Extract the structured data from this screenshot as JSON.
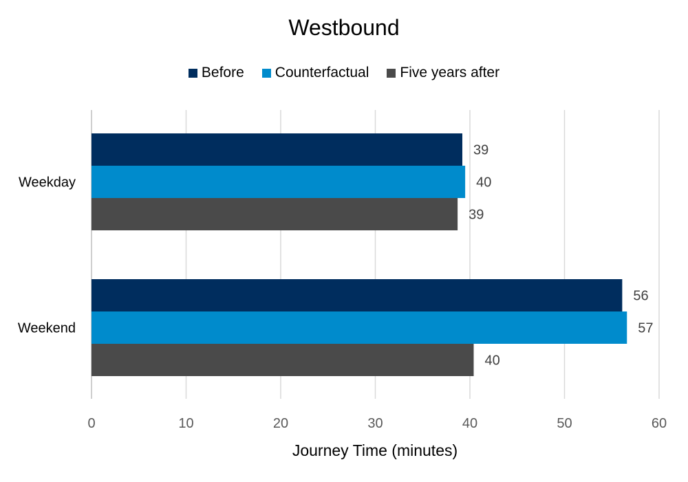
{
  "chart_data": {
    "type": "bar",
    "orientation": "horizontal",
    "title": "Westbound",
    "categories": [
      "Weekday",
      "Weekend"
    ],
    "series": [
      {
        "name": "Before",
        "color": "#002D5E",
        "values": [
          39.2,
          56.1
        ],
        "labels": [
          "39",
          "56"
        ]
      },
      {
        "name": "Counterfactual",
        "color": "#008BCC",
        "values": [
          39.5,
          56.6
        ],
        "labels": [
          "40",
          "57"
        ]
      },
      {
        "name": "Five years after",
        "color": "#4A4A4A",
        "values": [
          38.7,
          40.4
        ],
        "labels": [
          "39",
          "40"
        ]
      }
    ],
    "xlabel": "Journey Time (minutes)",
    "ylabel": "",
    "xlim": [
      0,
      60
    ],
    "xticks": [
      0,
      10,
      20,
      30,
      40,
      50,
      60
    ],
    "grid": true,
    "legend_position": "top"
  }
}
